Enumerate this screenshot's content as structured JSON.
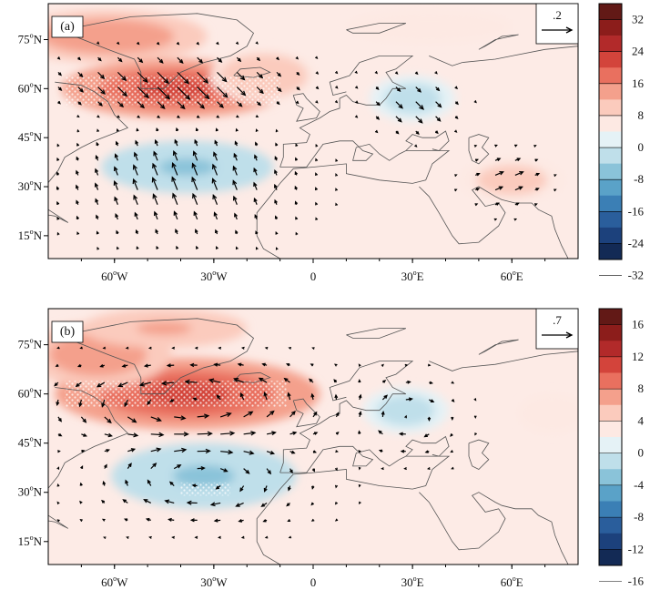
{
  "chart_data": [
    {
      "type": "heatmap",
      "panel_label": "(a)",
      "reference_vector": ".2",
      "xlim": [
        -80,
        80
      ],
      "ylim": [
        8,
        86
      ],
      "x_ticks": [
        -60,
        -30,
        0,
        30,
        60
      ],
      "x_tick_labels": [
        "60°W",
        "30°W",
        "0",
        "30°E",
        "60°E"
      ],
      "y_ticks": [
        15,
        30,
        45,
        60,
        75
      ],
      "y_tick_labels": [
        "15°N",
        "30°N",
        "45°N",
        "60°N",
        "75°N"
      ],
      "colorbar_ticks": [
        32,
        24,
        16,
        8,
        0,
        -8,
        -16,
        -24,
        -32
      ],
      "colorbar_labels": [
        "32",
        "24",
        "16",
        "8",
        "0",
        "-8",
        "-16",
        "-24",
        "-32"
      ],
      "color_levels": [
        "#621916",
        "#8c1d1b",
        "#b22a2a",
        "#d3443b",
        "#e9705f",
        "#f4a08c",
        "#fbcbbd",
        "#fde9e3",
        "#e5f2f6",
        "#bfdfea",
        "#8ac3d9",
        "#5aa2c8",
        "#3b7fb5",
        "#2a5e9c",
        "#1c417c",
        "#132a55"
      ],
      "anomaly_centers": [
        {
          "lon": -42,
          "lat": 60,
          "value": 20,
          "rx": 34,
          "ry": 9
        },
        {
          "lon": -62,
          "lat": 76,
          "value": 12,
          "rx": 30,
          "ry": 8
        },
        {
          "lon": -15,
          "lat": 64,
          "value": 8,
          "rx": 16,
          "ry": 8
        },
        {
          "lon": -38,
          "lat": 36,
          "value": -10,
          "rx": 26,
          "ry": 8
        },
        {
          "lon": 30,
          "lat": 57,
          "value": -7,
          "rx": 13,
          "ry": 7
        },
        {
          "lon": 60,
          "lat": 32,
          "value": 6,
          "rx": 16,
          "ry": 7
        },
        {
          "lon": 35,
          "lat": 79,
          "value": 4,
          "rx": 25,
          "ry": 5
        }
      ],
      "significant_regions": [
        {
          "lon": [
            -75,
            -10
          ],
          "lat": [
            55,
            64
          ]
        }
      ],
      "wind_vectors": [
        {
          "lon": -42,
          "lat": 62,
          "u": 0.1,
          "v": -0.1,
          "sigma": [
            30,
            8
          ],
          "spacing": 6
        },
        {
          "lon": -40,
          "lat": 30,
          "u": -0.04,
          "v": 0.1,
          "sigma": [
            30,
            14
          ],
          "spacing": 6
        },
        {
          "lon": 30,
          "lat": 55,
          "u": 0.06,
          "v": -0.06,
          "sigma": [
            12,
            8
          ],
          "spacing": 6
        },
        {
          "lon": 58,
          "lat": 32,
          "u": 0.07,
          "v": 0.03,
          "sigma": [
            10,
            8
          ],
          "spacing": 6
        }
      ]
    },
    {
      "type": "heatmap",
      "panel_label": "(b)",
      "reference_vector": ".7",
      "xlim": [
        -80,
        80
      ],
      "ylim": [
        8,
        86
      ],
      "x_ticks": [
        -60,
        -30,
        0,
        30,
        60
      ],
      "x_tick_labels": [
        "60°W",
        "30°W",
        "0",
        "30°E",
        "60°E"
      ],
      "y_ticks": [
        15,
        30,
        45,
        60,
        75
      ],
      "y_tick_labels": [
        "15°N",
        "30°N",
        "45°N",
        "60°N",
        "75°N"
      ],
      "colorbar_ticks": [
        16,
        12,
        8,
        4,
        0,
        -4,
        -8,
        -12,
        -16
      ],
      "colorbar_labels": [
        "16",
        "12",
        "8",
        "4",
        "0",
        "-4",
        "-8",
        "-12",
        "-16"
      ],
      "color_levels": [
        "#621916",
        "#8c1d1b",
        "#b22a2a",
        "#d3443b",
        "#e9705f",
        "#f4a08c",
        "#fbcbbd",
        "#fde9e3",
        "#e5f2f6",
        "#bfdfea",
        "#8ac3d9",
        "#5aa2c8",
        "#3b7fb5",
        "#2a5e9c",
        "#1c417c",
        "#132a55"
      ],
      "anomaly_centers": [
        {
          "lon": -38,
          "lat": 60,
          "value": 10,
          "rx": 40,
          "ry": 11
        },
        {
          "lon": -65,
          "lat": 72,
          "value": 6,
          "rx": 22,
          "ry": 10
        },
        {
          "lon": -45,
          "lat": 80,
          "value": 5,
          "rx": 25,
          "ry": 6
        },
        {
          "lon": -33,
          "lat": 35,
          "value": -5,
          "rx": 28,
          "ry": 10
        },
        {
          "lon": 28,
          "lat": 55,
          "value": -3,
          "rx": 13,
          "ry": 7
        },
        {
          "lon": 72,
          "lat": 54,
          "value": 2,
          "rx": 10,
          "ry": 6
        }
      ],
      "significant_regions": [
        {
          "lon": [
            -75,
            -8
          ],
          "lat": [
            56,
            64
          ]
        },
        {
          "lon": [
            -40,
            -25
          ],
          "lat": [
            29,
            33
          ]
        }
      ],
      "wind_vectors": [
        {
          "lon": -38,
          "lat": 57,
          "u": 0.55,
          "v": 0,
          "sigma": [
            35,
            9
          ],
          "spacing": 7,
          "rotation": -1
        },
        {
          "lon": -34,
          "lat": 34,
          "u": 0.45,
          "v": 0,
          "sigma": [
            25,
            10
          ],
          "spacing": 7,
          "rotation": 1
        },
        {
          "lon": 28,
          "lat": 53,
          "u": 0.3,
          "v": 0,
          "sigma": [
            12,
            9
          ],
          "spacing": 7,
          "rotation": 1
        }
      ]
    }
  ]
}
